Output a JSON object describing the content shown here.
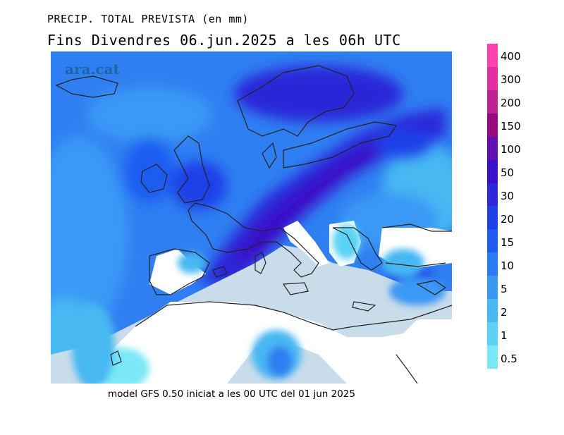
{
  "title": "PRECIP. TOTAL PREVISTA (en mm)",
  "subtitle": "Fins Divendres 06.jun.2025 a les 06h UTC",
  "watermark": "ara.cat",
  "footer": "model GFS 0.50 iniciat a les 00 UTC del 01 jun 2025",
  "legend": {
    "levels": [
      {
        "label": "400",
        "color": "#ff40b0"
      },
      {
        "label": "300",
        "color": "#e030a0"
      },
      {
        "label": "200",
        "color": "#c02090"
      },
      {
        "label": "150",
        "color": "#9a0880"
      },
      {
        "label": "100",
        "color": "#6010b0"
      },
      {
        "label": "50",
        "color": "#3a10c8"
      },
      {
        "label": "30",
        "color": "#2a28d8"
      },
      {
        "label": "20",
        "color": "#1e40e8"
      },
      {
        "label": "15",
        "color": "#1e5cf0"
      },
      {
        "label": "10",
        "color": "#2a7af5"
      },
      {
        "label": "5",
        "color": "#3a98f5"
      },
      {
        "label": "2",
        "color": "#46b8f2"
      },
      {
        "label": "1",
        "color": "#5ad2f4"
      },
      {
        "label": "0.5",
        "color": "#7ae8f6"
      }
    ]
  },
  "colors": {
    "land_dry": "#ffffff",
    "sea_dry": "#c8dcea",
    "coastline": "#222222"
  }
}
